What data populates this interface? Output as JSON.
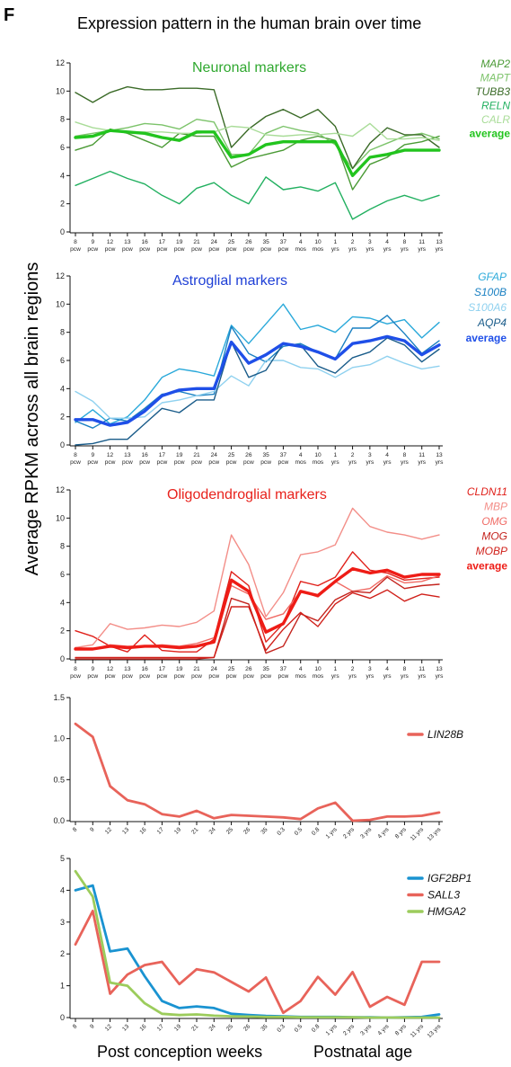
{
  "figure": {
    "panel_letter": "F",
    "title": "Expression pattern in the human brain over time",
    "ylabel": "Average RPKM across all brain regions",
    "xlabel_left": "Post conception weeks",
    "xlabel_right": "Postnatal age"
  },
  "chart_data": [
    {
      "type": "line",
      "title": "Neuronal markers",
      "title_color": "#2fa82f",
      "ylim": [
        0,
        12
      ],
      "yticks": [
        0,
        2,
        4,
        6,
        8,
        10,
        12
      ],
      "x_two_line": true,
      "categories": [
        "8 pcw",
        "9 pcw",
        "12 pcw",
        "13 pcw",
        "16 pcw",
        "17 pcw",
        "19 pcw",
        "21 pcw",
        "24 pcw",
        "25 pcw",
        "26 pcw",
        "35 pcw",
        "37 pcw",
        "4 mos",
        "10 mos",
        "1 yrs",
        "2 yrs",
        "3 yrs",
        "4 yrs",
        "8 yrs",
        "11 yrs",
        "13 yrs"
      ],
      "tick_labels": [
        [
          "8",
          "pcw"
        ],
        [
          "9",
          "pcw"
        ],
        [
          "12",
          "pcw"
        ],
        [
          "13",
          "pcw"
        ],
        [
          "16",
          "pcw"
        ],
        [
          "17",
          "pcw"
        ],
        [
          "19",
          "pcw"
        ],
        [
          "21",
          "pcw"
        ],
        [
          "24",
          "pcw"
        ],
        [
          "25",
          "pcw"
        ],
        [
          "26",
          "pcw"
        ],
        [
          "35",
          "pcw"
        ],
        [
          "37",
          "pcw"
        ],
        [
          "4",
          "mos"
        ],
        [
          "10",
          "mos"
        ],
        [
          "1",
          "yrs"
        ],
        [
          "2",
          "yrs"
        ],
        [
          "3",
          "yrs"
        ],
        [
          "4",
          "yrs"
        ],
        [
          "8",
          "yrs"
        ],
        [
          "11",
          "yrs"
        ],
        [
          "13",
          "yrs"
        ]
      ],
      "legend": "right",
      "series": [
        {
          "name": "MAP2",
          "color": "#4a9a35",
          "width": 1.4,
          "bold": false,
          "values": [
            5.8,
            6.2,
            7.3,
            7.0,
            6.5,
            6.0,
            7.0,
            6.8,
            6.8,
            4.6,
            5.2,
            5.5,
            5.8,
            6.5,
            6.8,
            6.5,
            3.0,
            4.8,
            5.3,
            6.2,
            6.4,
            6.8
          ]
        },
        {
          "name": "MAPT",
          "color": "#7cc36a",
          "width": 1.4,
          "bold": false,
          "values": [
            6.8,
            7.0,
            7.2,
            7.4,
            7.7,
            7.6,
            7.3,
            8.0,
            7.8,
            5.5,
            5.5,
            7.0,
            7.5,
            7.2,
            7.0,
            6.2,
            4.5,
            5.8,
            6.3,
            6.8,
            7.0,
            6.6
          ]
        },
        {
          "name": "TUBB3",
          "color": "#3b6b28",
          "width": 1.4,
          "bold": false,
          "values": [
            9.9,
            9.2,
            9.9,
            10.3,
            10.1,
            10.1,
            10.2,
            10.2,
            10.1,
            6.0,
            7.3,
            8.2,
            8.7,
            8.1,
            8.7,
            7.5,
            4.5,
            6.3,
            7.4,
            6.9,
            6.9,
            6.0
          ]
        },
        {
          "name": "RELN",
          "color": "#22b060",
          "width": 1.4,
          "bold": false,
          "values": [
            3.3,
            3.8,
            4.3,
            3.8,
            3.4,
            2.6,
            2.0,
            3.1,
            3.5,
            2.6,
            2.0,
            3.9,
            3.0,
            3.2,
            2.9,
            3.5,
            0.9,
            1.6,
            2.2,
            2.6,
            2.2,
            2.6
          ]
        },
        {
          "name": "CALR",
          "color": "#a9dc98",
          "width": 1.4,
          "bold": false,
          "values": [
            7.8,
            7.4,
            7.2,
            7.1,
            7.1,
            7.1,
            7.0,
            7.0,
            7.1,
            7.5,
            7.4,
            6.9,
            6.8,
            6.9,
            6.9,
            7.0,
            6.8,
            7.7,
            6.6,
            6.6,
            6.7,
            6.5
          ]
        },
        {
          "name": "average",
          "color": "#22c41e",
          "width": 3.4,
          "bold": true,
          "values": [
            6.7,
            6.8,
            7.2,
            7.1,
            7.0,
            6.7,
            6.5,
            7.1,
            7.1,
            5.3,
            5.5,
            6.2,
            6.4,
            6.4,
            6.4,
            6.4,
            4.0,
            5.3,
            5.5,
            5.8,
            5.8,
            5.8
          ]
        }
      ]
    },
    {
      "type": "line",
      "title": "Astroglial markers",
      "title_color": "#1e3fd6",
      "ylim": [
        0,
        12
      ],
      "yticks": [
        0,
        2,
        4,
        6,
        8,
        10,
        12
      ],
      "x_two_line": true,
      "categories": [
        "8 pcw",
        "9 pcw",
        "12 pcw",
        "13 pcw",
        "16 pcw",
        "17 pcw",
        "19 pcw",
        "21 pcw",
        "24 pcw",
        "25 pcw",
        "26 pcw",
        "35 pcw",
        "37 pcw",
        "4 mos",
        "10 mos",
        "1 yrs",
        "2 yrs",
        "3 yrs",
        "4 yrs",
        "8 yrs",
        "11 yrs",
        "13 yrs"
      ],
      "tick_labels": [
        [
          "8",
          "pcw"
        ],
        [
          "9",
          "pcw"
        ],
        [
          "12",
          "pcw"
        ],
        [
          "13",
          "pcw"
        ],
        [
          "16",
          "pcw"
        ],
        [
          "17",
          "pcw"
        ],
        [
          "19",
          "pcw"
        ],
        [
          "21",
          "pcw"
        ],
        [
          "24",
          "pcw"
        ],
        [
          "25",
          "pcw"
        ],
        [
          "26",
          "pcw"
        ],
        [
          "35",
          "pcw"
        ],
        [
          "37",
          "pcw"
        ],
        [
          "4",
          "mos"
        ],
        [
          "10",
          "mos"
        ],
        [
          "1",
          "yrs"
        ],
        [
          "2",
          "yrs"
        ],
        [
          "3",
          "yrs"
        ],
        [
          "4",
          "yrs"
        ],
        [
          "8",
          "yrs"
        ],
        [
          "11",
          "yrs"
        ],
        [
          "13",
          "yrs"
        ]
      ],
      "legend": "right",
      "series": [
        {
          "name": "GFAP",
          "color": "#2aa9da",
          "width": 1.4,
          "bold": false,
          "values": [
            1.6,
            2.5,
            1.5,
            2.0,
            3.2,
            4.8,
            5.4,
            5.2,
            4.9,
            8.5,
            7.2,
            8.6,
            10.0,
            8.2,
            8.5,
            8.0,
            9.1,
            9.0,
            8.6,
            8.9,
            7.6,
            8.7
          ]
        },
        {
          "name": "S100B",
          "color": "#1a80c2",
          "width": 1.4,
          "bold": false,
          "values": [
            1.7,
            1.2,
            1.9,
            1.7,
            2.6,
            3.6,
            3.8,
            3.5,
            3.6,
            8.4,
            6.5,
            5.9,
            7.0,
            7.2,
            6.6,
            6.1,
            8.3,
            8.3,
            9.2,
            7.9,
            6.5,
            7.4
          ]
        },
        {
          "name": "S100A6",
          "color": "#8fd1ef",
          "width": 1.4,
          "bold": false,
          "values": [
            3.8,
            3.1,
            1.9,
            1.9,
            2.0,
            3.0,
            3.2,
            3.5,
            3.8,
            4.9,
            4.2,
            6.0,
            6.0,
            5.5,
            5.4,
            4.8,
            5.5,
            5.7,
            6.3,
            5.8,
            5.4,
            5.6
          ]
        },
        {
          "name": "AQP4",
          "color": "#1a5c8a",
          "width": 1.4,
          "bold": false,
          "values": [
            0.0,
            0.1,
            0.4,
            0.4,
            1.5,
            2.6,
            2.3,
            3.2,
            3.2,
            7.3,
            4.8,
            5.3,
            7.2,
            7.1,
            5.6,
            5.1,
            6.2,
            6.6,
            7.6,
            7.1,
            5.9,
            6.8
          ]
        },
        {
          "name": "average",
          "color": "#1f4fe8",
          "width": 3.4,
          "bold": true,
          "values": [
            1.8,
            1.8,
            1.4,
            1.6,
            2.4,
            3.5,
            3.9,
            4.0,
            4.0,
            7.3,
            5.8,
            6.4,
            7.2,
            7.0,
            6.6,
            6.1,
            7.2,
            7.4,
            7.7,
            7.4,
            6.4,
            7.1
          ]
        }
      ]
    },
    {
      "type": "line",
      "title": "Oligodendroglial markers",
      "title_color": "#e8221c",
      "ylim": [
        0,
        12
      ],
      "yticks": [
        0,
        2,
        4,
        6,
        8,
        10,
        12
      ],
      "x_two_line": true,
      "categories": [
        "8 pcw",
        "9 pcw",
        "12 pcw",
        "13 pcw",
        "16 pcw",
        "17 pcw",
        "19 pcw",
        "21 pcw",
        "24 pcw",
        "25 pcw",
        "26 pcw",
        "35 pcw",
        "37 pcw",
        "4 mos",
        "10 mos",
        "1 yrs",
        "2 yrs",
        "3 yrs",
        "4 yrs",
        "8 yrs",
        "11 yrs",
        "13 yrs"
      ],
      "tick_labels": [
        [
          "8",
          "pcw"
        ],
        [
          "9",
          "pcw"
        ],
        [
          "12",
          "pcw"
        ],
        [
          "13",
          "pcw"
        ],
        [
          "16",
          "pcw"
        ],
        [
          "17",
          "pcw"
        ],
        [
          "19",
          "pcw"
        ],
        [
          "21",
          "pcw"
        ],
        [
          "24",
          "pcw"
        ],
        [
          "25",
          "pcw"
        ],
        [
          "26",
          "pcw"
        ],
        [
          "35",
          "pcw"
        ],
        [
          "37",
          "pcw"
        ],
        [
          "4",
          "mos"
        ],
        [
          "10",
          "mos"
        ],
        [
          "1",
          "yrs"
        ],
        [
          "2",
          "yrs"
        ],
        [
          "3",
          "yrs"
        ],
        [
          "4",
          "yrs"
        ],
        [
          "8",
          "yrs"
        ],
        [
          "11",
          "yrs"
        ],
        [
          "13",
          "yrs"
        ]
      ],
      "legend": "right",
      "series": [
        {
          "name": "CLDN11",
          "color": "#e0201a",
          "width": 1.4,
          "bold": false,
          "values": [
            2.0,
            1.6,
            0.9,
            0.5,
            1.7,
            0.6,
            0.5,
            0.5,
            1.4,
            6.2,
            5.2,
            1.2,
            2.5,
            5.5,
            5.2,
            5.8,
            7.6,
            6.3,
            6.1,
            5.6,
            5.7,
            5.8
          ]
        },
        {
          "name": "MBP",
          "color": "#f38e88",
          "width": 1.4,
          "bold": false,
          "values": [
            0.8,
            1.0,
            2.5,
            2.1,
            2.2,
            2.4,
            2.3,
            2.6,
            3.4,
            8.8,
            6.7,
            3.0,
            4.7,
            7.4,
            7.6,
            8.1,
            10.7,
            9.4,
            9.0,
            8.8,
            8.5,
            8.8
          ]
        },
        {
          "name": "OMG",
          "color": "#f06a64",
          "width": 1.4,
          "bold": false,
          "values": [
            0.8,
            0.7,
            1.0,
            0.9,
            0.9,
            1.0,
            0.9,
            1.1,
            1.5,
            5.2,
            4.6,
            2.8,
            3.2,
            4.8,
            4.4,
            5.5,
            4.8,
            5.0,
            5.9,
            5.4,
            5.5,
            5.9
          ]
        },
        {
          "name": "MOG",
          "color": "#c4241e",
          "width": 1.4,
          "bold": false,
          "values": [
            0.0,
            0.0,
            0.0,
            0.0,
            0.0,
            0.0,
            0.0,
            0.0,
            0.1,
            4.3,
            3.9,
            0.4,
            0.9,
            3.2,
            2.7,
            4.2,
            4.8,
            4.7,
            5.8,
            5.0,
            5.2,
            5.3
          ]
        },
        {
          "name": "MOBP",
          "color": "#d0201a",
          "width": 1.4,
          "bold": false,
          "values": [
            0.1,
            0.1,
            0.1,
            0.1,
            0.1,
            0.1,
            0.1,
            0.1,
            0.1,
            3.7,
            3.7,
            0.6,
            2.1,
            3.3,
            2.3,
            3.9,
            4.7,
            4.3,
            4.9,
            4.1,
            4.6,
            4.4
          ]
        },
        {
          "name": "average",
          "color": "#ee1c16",
          "width": 3.4,
          "bold": true,
          "values": [
            0.7,
            0.7,
            0.9,
            0.8,
            0.9,
            0.9,
            0.8,
            0.9,
            1.2,
            5.6,
            4.8,
            1.9,
            2.5,
            4.8,
            4.5,
            5.5,
            6.4,
            6.1,
            6.3,
            5.8,
            6.0,
            6.0
          ]
        }
      ]
    },
    {
      "type": "line",
      "ylim": [
        0,
        1.5
      ],
      "yticks": [
        0.0,
        0.5,
        1.0,
        1.5
      ],
      "ytick_labels": [
        "0.0",
        "0.5",
        "1.0",
        "1.5"
      ],
      "x_two_line": false,
      "categories": [
        "8",
        "9",
        "12",
        "13",
        "16",
        "17",
        "19",
        "21",
        "24",
        "25",
        "26",
        "35",
        "0.3",
        "0.5",
        "0.8",
        "1 yrs",
        "2 yrs",
        "3 yrs",
        "4 yrs",
        "8 yrs",
        "11 yrs",
        "13 yrs"
      ],
      "legend": "right",
      "series": [
        {
          "name": "LIN28B",
          "color": "#e8635a",
          "width": 2.8,
          "bold": false,
          "values": [
            1.18,
            1.02,
            0.42,
            0.25,
            0.2,
            0.08,
            0.05,
            0.12,
            0.03,
            0.07,
            0.06,
            0.05,
            0.04,
            0.02,
            0.15,
            0.22,
            0.0,
            0.01,
            0.05,
            0.05,
            0.06,
            0.1
          ]
        }
      ]
    },
    {
      "type": "line",
      "ylim": [
        0,
        5
      ],
      "yticks": [
        0,
        1,
        2,
        3,
        4,
        5
      ],
      "x_two_line": false,
      "categories": [
        "8",
        "9",
        "12",
        "13",
        "16",
        "17",
        "19",
        "21",
        "24",
        "25",
        "26",
        "35",
        "0.3",
        "0.5",
        "0.8",
        "1 yrs",
        "2 yrs",
        "3 yrs",
        "4 yrs",
        "8 yrs",
        "11 yrs",
        "13 yrs"
      ],
      "legend": "right",
      "series": [
        {
          "name": "IGF2BP1",
          "color": "#1a93d1",
          "width": 2.8,
          "bold": false,
          "values": [
            4.0,
            4.15,
            2.08,
            2.17,
            1.3,
            0.52,
            0.3,
            0.35,
            0.3,
            0.12,
            0.08,
            0.05,
            0.04,
            0.02,
            0.02,
            0.02,
            0.01,
            0.01,
            0.0,
            0.01,
            0.02,
            0.1
          ]
        },
        {
          "name": "SALL3",
          "color": "#e8635a",
          "width": 2.8,
          "bold": false,
          "values": [
            2.3,
            3.35,
            0.75,
            1.35,
            1.65,
            1.75,
            1.05,
            1.52,
            1.42,
            1.12,
            0.82,
            1.26,
            0.15,
            0.52,
            1.28,
            0.72,
            1.43,
            0.34,
            0.65,
            0.4,
            1.75,
            1.75
          ]
        },
        {
          "name": "HMGA2",
          "color": "#9ccc5c",
          "width": 2.8,
          "bold": false,
          "values": [
            4.6,
            3.8,
            1.1,
            1.0,
            0.45,
            0.12,
            0.08,
            0.1,
            0.06,
            0.04,
            0.03,
            0.02,
            0.02,
            0.01,
            0.01,
            0.01,
            0.01,
            0.0,
            0.0,
            0.0,
            0.0,
            0.0
          ]
        }
      ]
    }
  ]
}
